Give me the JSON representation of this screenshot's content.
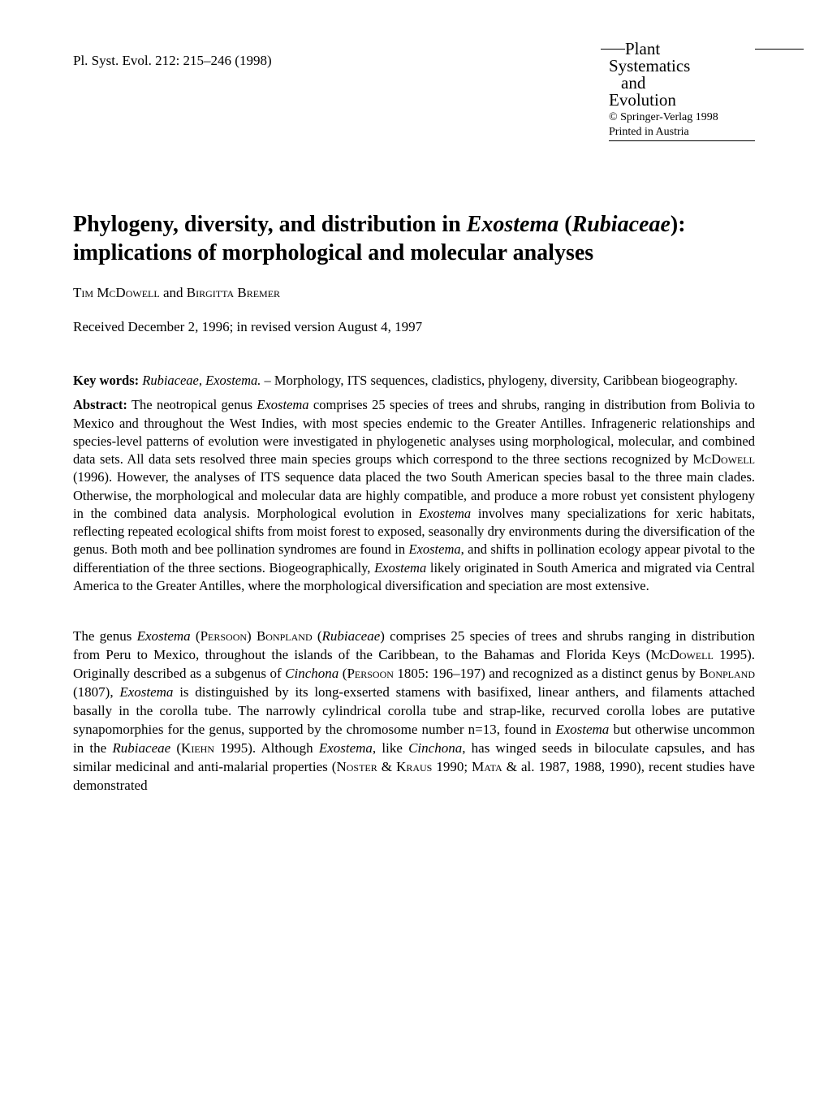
{
  "header": {
    "citation": "Pl. Syst. Evol. 212: 215–246 (1998)",
    "journal": {
      "line1": "Plant",
      "line2": "Systematics",
      "line3": "and",
      "line4": "Evolution",
      "copyright": "© Springer-Verlag 1998",
      "printed": "Printed in Austria"
    }
  },
  "title": {
    "part1": "Phylogeny, diversity, and distribution in ",
    "italic1": "Exostema",
    "part2": " (",
    "italic2": "Rubiaceae",
    "part3": "): implications of morphological and molecular analyses"
  },
  "authors": {
    "author1_first": "Tim",
    "author1_last": "McDowell",
    "and": " and ",
    "author2_first": "Birgitta",
    "author2_last": "Bremer"
  },
  "received": "Received December 2, 1996; in revised version August 4, 1997",
  "keywords": {
    "label": "Key words:",
    "italic1": "Rubiaceae, Exostema.",
    "rest": " – Morphology, ITS sequences, cladistics, phylogeny, diversity, Caribbean biogeography."
  },
  "abstract": {
    "label": "Abstract:",
    "part1": " The neotropical genus ",
    "italic1": "Exostema",
    "part2": " comprises 25 species of trees and shrubs, ranging in distribution from Bolivia to Mexico and throughout the West Indies, with most species endemic to the Greater Antilles. Infrageneric relationships and species-level patterns of evolution were investigated in phylogenetic analyses using morphological, molecular, and combined data sets. All data sets resolved three main species groups which correspond to the three sections recognized by ",
    "smallcaps1": "McDowell",
    "part3": " (1996). However, the analyses of ITS sequence data placed the two South American species basal to the three main clades. Otherwise, the morphological and molecular data are highly compatible, and produce a more robust yet consistent phylogeny in the combined data analysis. Morphological evolution in ",
    "italic2": "Exostema",
    "part4": " involves many specializations for xeric habitats, reflecting repeated ecological shifts from moist forest to exposed, seasonally dry environments during the diversification of the genus. Both moth and bee pollination syndromes are found in ",
    "italic3": "Exostema",
    "part5": ", and shifts in pollination ecology appear pivotal to the differentiation of the three sections. Biogeographically, ",
    "italic4": "Exostema",
    "part6": " likely originated in South America and migrated via Central America to the Greater Antilles, where the morphological diversification and speciation are most extensive."
  },
  "body": {
    "part1": "The genus ",
    "italic1": "Exostema",
    "part2": " (",
    "smallcaps1": "Persoon",
    "part3": ") ",
    "smallcaps2": "Bonpland",
    "part4": " (",
    "italic2": "Rubiaceae",
    "part5": ") comprises 25 species of trees and shrubs ranging in distribution from Peru to Mexico, throughout the islands of the Caribbean, to the Bahamas and Florida Keys (",
    "smallcaps3": "McDowell",
    "part6": " 1995). Originally described as a subgenus of ",
    "italic3": "Cinchona",
    "part7": " (",
    "smallcaps4": "Persoon",
    "part8": " 1805: 196–197) and recognized as a distinct genus by ",
    "smallcaps5": "Bonpland",
    "part9": " (1807), ",
    "italic4": "Exostema",
    "part10": " is distinguished by its long-exserted stamens with basifixed, linear anthers, and filaments attached basally in the corolla tube. The narrowly cylindrical corolla tube and strap-like, recurved corolla lobes are putative synapomorphies for the genus, supported by the chromosome number n=13, found in ",
    "italic5": "Exostema",
    "part11": " but otherwise uncommon in the ",
    "italic6": "Rubiaceae",
    "part12": " (",
    "smallcaps6": "Kiehn",
    "part13": " 1995). Although ",
    "italic7": "Exostema",
    "part14": ", like ",
    "italic8": "Cinchona",
    "part15": ", has winged seeds in biloculate capsules, and has similar medicinal and anti-malarial properties (",
    "smallcaps7": "Noster",
    "part16": " & ",
    "smallcaps8": "Kraus",
    "part17": " 1990; ",
    "smallcaps9": "Mata",
    "part18": " & al. 1987, 1988, 1990), recent studies have demonstrated"
  }
}
